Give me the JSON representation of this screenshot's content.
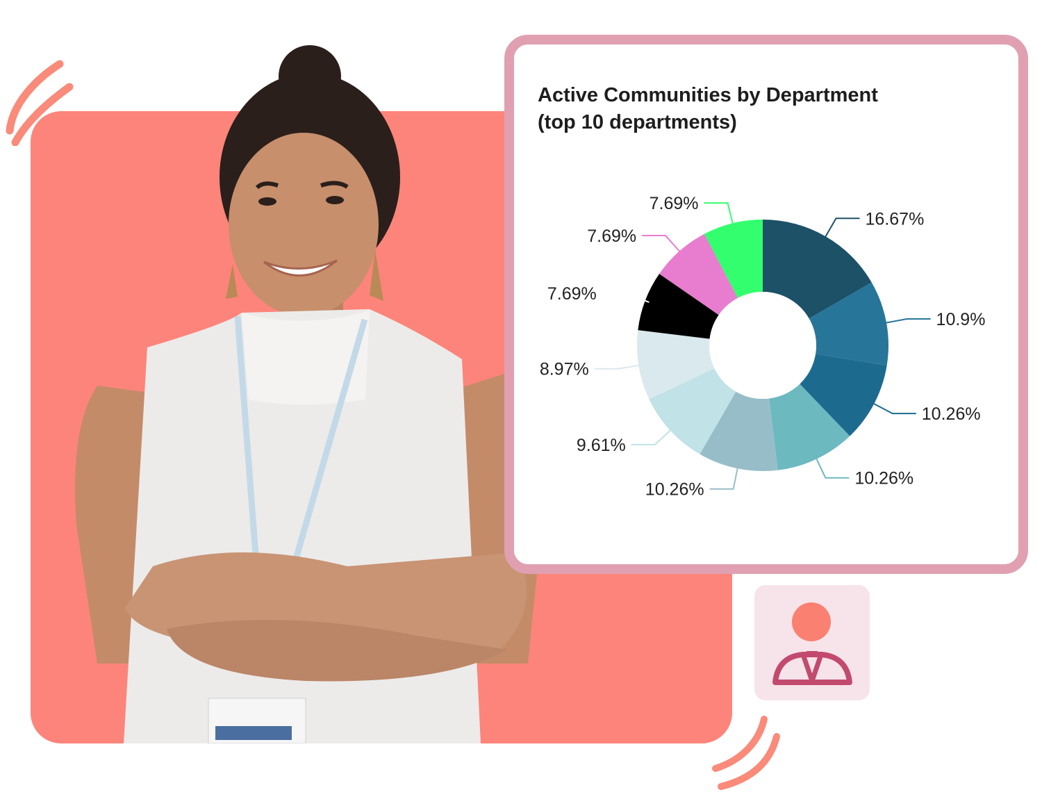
{
  "chart_data": {
    "type": "pie",
    "title_lines": [
      "Active Communities by Department",
      "(top 10 departments)"
    ],
    "values": [
      16.67,
      10.9,
      10.26,
      10.26,
      10.26,
      9.61,
      8.97,
      7.69,
      7.69,
      7.69
    ],
    "data_labels": [
      "16.67%",
      "10.9%",
      "10.26%",
      "10.26%",
      "10.26%",
      "9.61%",
      "8.97%",
      "7.69%",
      "7.69%",
      "7.69%"
    ],
    "colors": [
      "#1c5168",
      "#277699",
      "#1d6a8f",
      "#6cb9c0",
      "#97bec8",
      "#c1e2e6",
      "#dae9ee",
      "#000000",
      "#e87cce",
      "#33ff6e"
    ],
    "donut": true,
    "legend": "none"
  },
  "page": {
    "panel_color": "#fd847a",
    "card_border_color": "#e0a0b2",
    "badge": {
      "icon": "businessperson-icon",
      "background": "#f7e4ea",
      "head_color": "#fa8072",
      "outline_color": "#c34a6f"
    },
    "decorative_images": [
      "person-photo"
    ]
  }
}
